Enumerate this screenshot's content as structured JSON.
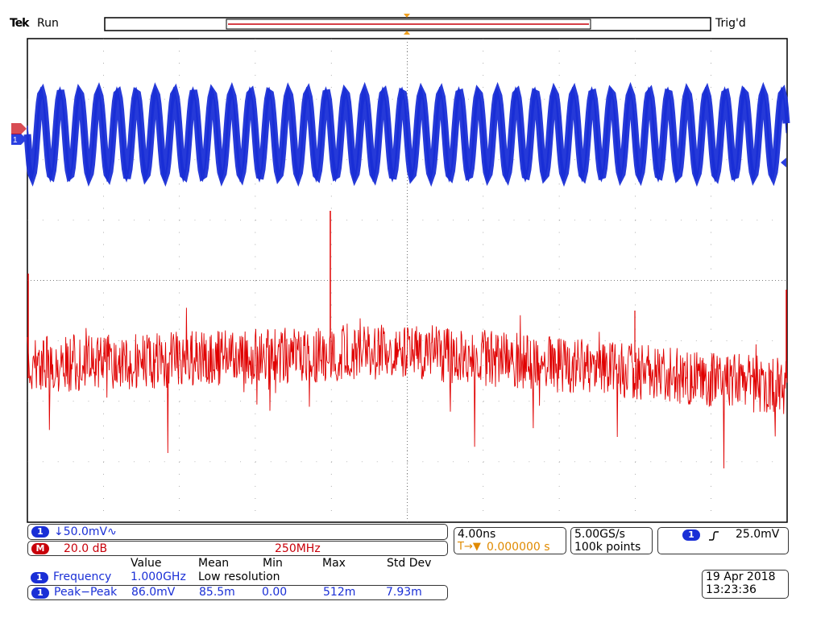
{
  "header": {
    "brand": "Tek",
    "state": "Run",
    "trigger_status": "Trig'd"
  },
  "colors": {
    "ch1": "#1a2fd6",
    "math": "#e00000",
    "grid": "#777777",
    "trigger_marker": "#f0a020"
  },
  "channel1": {
    "badge": "1",
    "scale": "↓50.0mV∿"
  },
  "math_channel": {
    "badge": "M",
    "scale": "20.0 dB",
    "span": "250MHz"
  },
  "horizontal": {
    "timebase": "4.00ns",
    "trigger_position": "0.000000 s",
    "sample_rate": "5.00GS/s",
    "record_length": "100k points"
  },
  "trigger": {
    "source_badge": "1",
    "slope_icon": "rising-edge-icon",
    "level": "25.0mV"
  },
  "measurements": {
    "headers": [
      "Value",
      "Mean",
      "Min",
      "Max",
      "Std Dev"
    ],
    "rows": [
      {
        "badge": "1",
        "name": "Frequency",
        "value": "1.000GHz",
        "mean": "Low resolution",
        "min": "",
        "max": "",
        "std": ""
      },
      {
        "badge": "1",
        "name": "Peak−Peak",
        "value": "86.0mV",
        "mean": "85.5m",
        "min": "0.00",
        "max": "512m",
        "std": "7.93m"
      }
    ]
  },
  "datetime": {
    "date": "19 Apr  2018",
    "time": "13:23:36"
  },
  "markers": {
    "ch1_ground": "1"
  }
}
